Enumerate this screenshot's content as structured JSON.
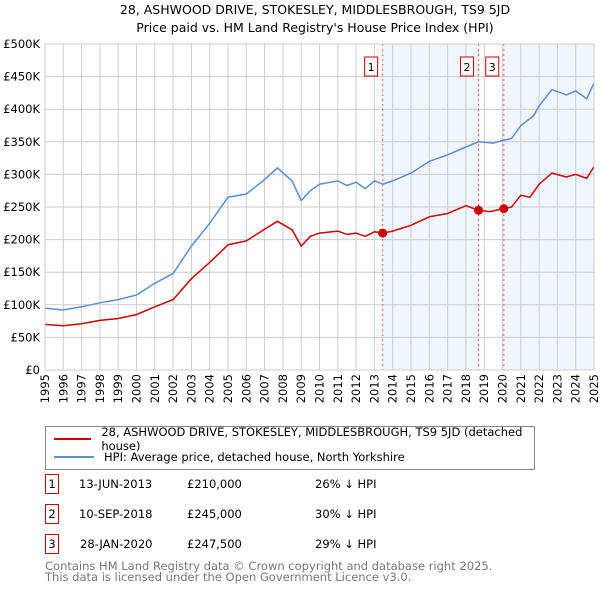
{
  "chart_data": {
    "type": "line",
    "title": "28, ASHWOOD DRIVE, STOKESLEY, MIDDLESBROUGH, TS9 5JD",
    "subtitle": "Price paid vs. HM Land Registry's House Price Index (HPI)",
    "xlim": [
      1995,
      2025
    ],
    "ylim": [
      0,
      500000
    ],
    "yticks": [
      "£0",
      "£50K",
      "£100K",
      "£150K",
      "£200K",
      "£250K",
      "£300K",
      "£350K",
      "£400K",
      "£450K",
      "£500K"
    ],
    "xticks": [
      "1995",
      "1996",
      "1997",
      "1998",
      "1999",
      "2000",
      "2001",
      "2002",
      "2003",
      "2004",
      "2005",
      "2006",
      "2007",
      "2008",
      "2009",
      "2010",
      "2011",
      "2012",
      "2013",
      "2014",
      "2015",
      "2016",
      "2017",
      "2018",
      "2019",
      "2020",
      "2021",
      "2022",
      "2023",
      "2024",
      "2025"
    ],
    "grid": true,
    "series": [
      {
        "name": "28, ASHWOOD DRIVE, STOKESLEY, MIDDLESBROUGH, TS9 5JD (detached house)",
        "color": "#cc0000",
        "x": [
          1995,
          1996,
          1997,
          1998,
          1999,
          2000,
          2001,
          2002,
          2003,
          2004,
          2005,
          2006,
          2007,
          2007.7,
          2008.5,
          2009,
          2009.5,
          2010,
          2011,
          2011.5,
          2012,
          2012.5,
          2013,
          2013.45,
          2014,
          2015,
          2016,
          2017,
          2018,
          2018.69,
          2019.3,
          2020.07,
          2020.5,
          2021,
          2021.5,
          2022,
          2022.7,
          2023.5,
          2024,
          2024.6,
          2025
        ],
        "y": [
          70,
          68,
          71,
          76,
          79,
          85,
          97,
          108,
          140,
          165,
          192,
          198,
          216,
          228,
          215,
          190,
          205,
          210,
          213,
          208,
          210,
          205,
          212,
          210,
          213,
          222,
          235,
          240,
          252,
          245,
          243,
          247.5,
          250,
          268,
          265,
          285,
          302,
          296,
          300,
          294,
          312
        ]
      },
      {
        "name": "HPI: Average price, detached house, North Yorkshire",
        "color": "#5b8fd4",
        "x": [
          1995,
          1996,
          1997,
          1998,
          1999,
          2000,
          2001,
          2002,
          2003,
          2004,
          2005,
          2006,
          2007,
          2007.7,
          2008.5,
          2009,
          2009.5,
          2010,
          2011,
          2011.5,
          2012,
          2012.5,
          2013,
          2013.45,
          2014,
          2015,
          2016,
          2017,
          2018,
          2018.69,
          2019.5,
          2020,
          2020.5,
          2021,
          2021.7,
          2022,
          2022.7,
          2023.5,
          2024,
          2024.6,
          2025
        ],
        "y": [
          95,
          92,
          97,
          103,
          108,
          115,
          133,
          148,
          190,
          225,
          265,
          270,
          292,
          310,
          290,
          260,
          275,
          285,
          290,
          283,
          288,
          278,
          290,
          285,
          290,
          302,
          320,
          330,
          342,
          350,
          348,
          352,
          355,
          375,
          390,
          405,
          430,
          422,
          428,
          416,
          440
        ]
      }
    ],
    "y_units": 1000,
    "sales": [
      {
        "id": "1",
        "x": 2013.45,
        "date": "13-JUN-2013",
        "price": "£210,000",
        "value": 210000,
        "hpi": "26% ↓ HPI"
      },
      {
        "id": "2",
        "x": 2018.69,
        "date": "10-SEP-2018",
        "price": "£245,000",
        "value": 245000,
        "hpi": "30% ↓ HPI"
      },
      {
        "id": "3",
        "x": 2020.07,
        "date": "28-JAN-2020",
        "price": "£247,500",
        "value": 247500,
        "hpi": "29% ↓ HPI"
      }
    ],
    "legend_placement": "below"
  },
  "footer": {
    "line1": "Contains HM Land Registry data © Crown copyright and database right 2025.",
    "line2": "This data is licensed under the Open Government Licence v3.0."
  }
}
